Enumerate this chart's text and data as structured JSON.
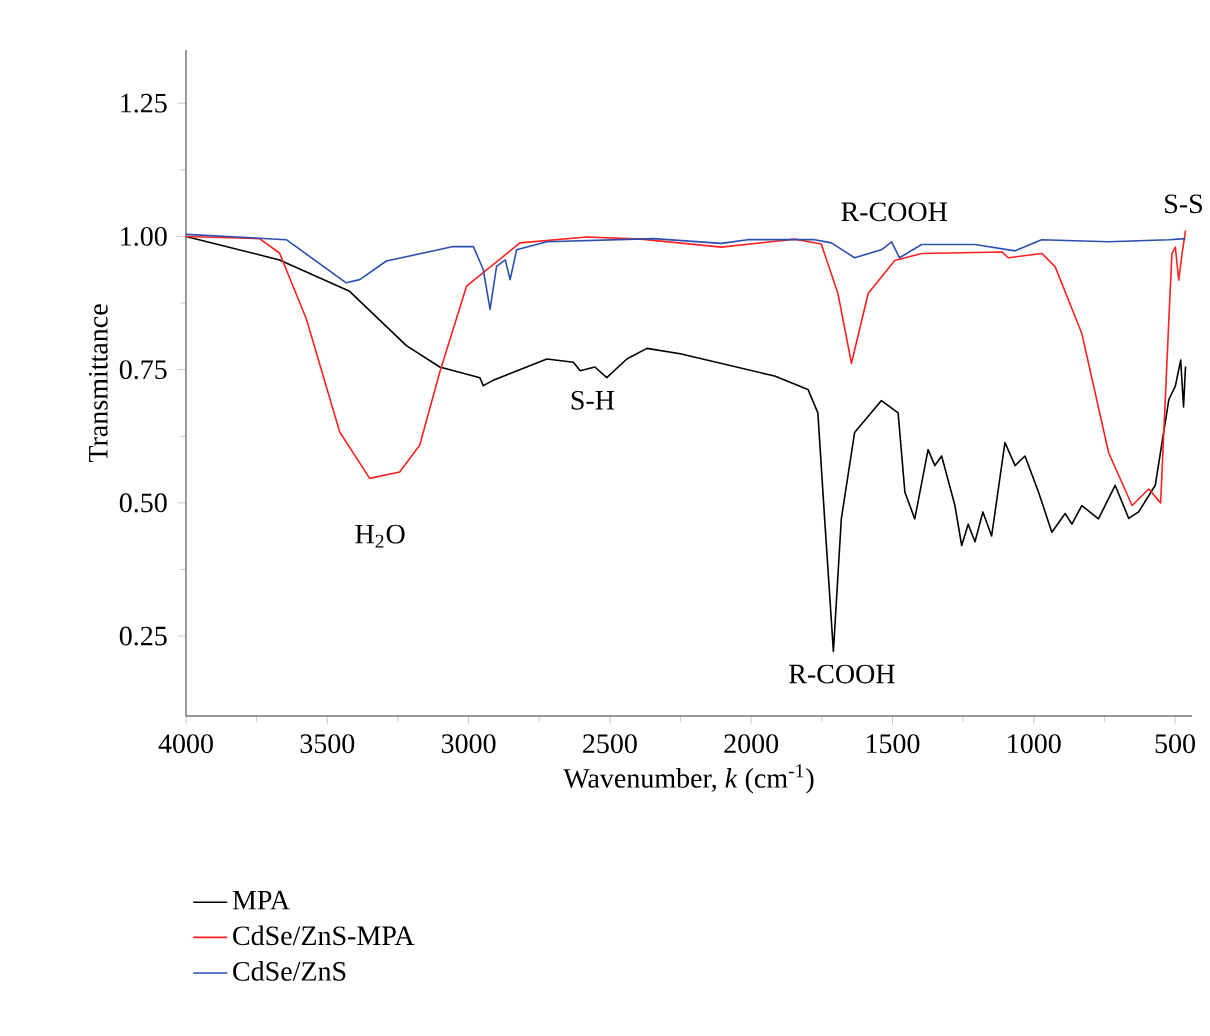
{
  "chart_data": {
    "type": "line",
    "xlabel": "Wavenumber, *k* (cm$^{-1}$)",
    "ylabel": "Transmittance",
    "xlim": [
      4000,
      440
    ],
    "xticks": [
      4000,
      3500,
      3000,
      2500,
      2000,
      1500,
      1000,
      500
    ],
    "ylim": [
      0.1,
      1.35
    ],
    "yticks": [
      {
        "value": 0.25,
        "label": "0.25"
      },
      {
        "value": 0.5,
        "label": "0.50"
      },
      {
        "value": 0.75,
        "label": "0.75"
      },
      {
        "value": 1.0,
        "label": "1.00"
      },
      {
        "value": 1.25,
        "label": "1.25"
      }
    ],
    "grid": false,
    "legend": "bottom",
    "marker": "none",
    "line_style": "solid",
    "series": [
      {
        "name": "MPA",
        "color": "#000000",
        "x": [
          4000,
          3669,
          3421,
          3220,
          3102,
          2960,
          2948,
          2913,
          2818,
          2723,
          2629,
          2605,
          2553,
          2511,
          2440,
          2369,
          2251,
          1917,
          1799,
          1764,
          1740,
          1709,
          1681,
          1634,
          1539,
          1480,
          1456,
          1421,
          1374,
          1350,
          1326,
          1279,
          1255,
          1232,
          1208,
          1180,
          1149,
          1102,
          1066,
          1031,
          983,
          936,
          889,
          865,
          830,
          771,
          712,
          664,
          629,
          570,
          522,
          499,
          480,
          470,
          463
        ],
        "values": [
          1.0,
          0.956,
          0.897,
          0.795,
          0.755,
          0.735,
          0.72,
          0.73,
          0.75,
          0.77,
          0.764,
          0.748,
          0.755,
          0.735,
          0.77,
          0.79,
          0.78,
          0.738,
          0.713,
          0.669,
          0.47,
          0.221,
          0.47,
          0.632,
          0.692,
          0.669,
          0.52,
          0.47,
          0.6,
          0.57,
          0.588,
          0.495,
          0.42,
          0.46,
          0.427,
          0.483,
          0.438,
          0.613,
          0.57,
          0.588,
          0.52,
          0.445,
          0.48,
          0.46,
          0.495,
          0.47,
          0.533,
          0.471,
          0.483,
          0.533,
          0.694,
          0.719,
          0.768,
          0.68,
          0.756
        ]
      },
      {
        "name": "CdSe/ZnS-MPA",
        "color": "#ff2020",
        "x": [
          4000,
          3740,
          3669,
          3574,
          3456,
          3350,
          3244,
          3173,
          3102,
          3007,
          2818,
          2582,
          2390,
          2106,
          1846,
          1752,
          1693,
          1645,
          1586,
          1492,
          1397,
          1113,
          1090,
          971,
          924,
          830,
          735,
          652,
          593,
          551,
          522,
          511,
          499,
          487,
          475,
          463
        ],
        "values": [
          1.0,
          0.996,
          0.969,
          0.845,
          0.633,
          0.546,
          0.558,
          0.608,
          0.745,
          0.907,
          0.988,
          0.999,
          0.995,
          0.98,
          0.995,
          0.986,
          0.893,
          0.762,
          0.893,
          0.955,
          0.968,
          0.971,
          0.96,
          0.968,
          0.943,
          0.818,
          0.594,
          0.495,
          0.526,
          0.5,
          0.843,
          0.968,
          0.98,
          0.918,
          0.968,
          1.011
        ]
      },
      {
        "name": "CdSe/ZnS",
        "color": "#2a4fb0",
        "x": [
          4000,
          3645,
          3433,
          3385,
          3291,
          3054,
          2983,
          2948,
          2924,
          2901,
          2870,
          2853,
          2830,
          2723,
          2345,
          2106,
          2012,
          1775,
          1716,
          1634,
          1539,
          1503,
          1475,
          1397,
          1208,
          1066,
          972,
          735,
          522,
          463
        ],
        "values": [
          1.004,
          0.994,
          0.913,
          0.919,
          0.954,
          0.981,
          0.981,
          0.938,
          0.863,
          0.944,
          0.956,
          0.919,
          0.975,
          0.99,
          0.996,
          0.987,
          0.994,
          0.994,
          0.988,
          0.96,
          0.975,
          0.99,
          0.96,
          0.985,
          0.985,
          0.973,
          0.994,
          0.99,
          0.994,
          0.996
        ]
      }
    ],
    "annotations": [
      "H$_{2}$O",
      "S-H",
      "R-COOH",
      "R-COOH",
      "S-S"
    ]
  }
}
